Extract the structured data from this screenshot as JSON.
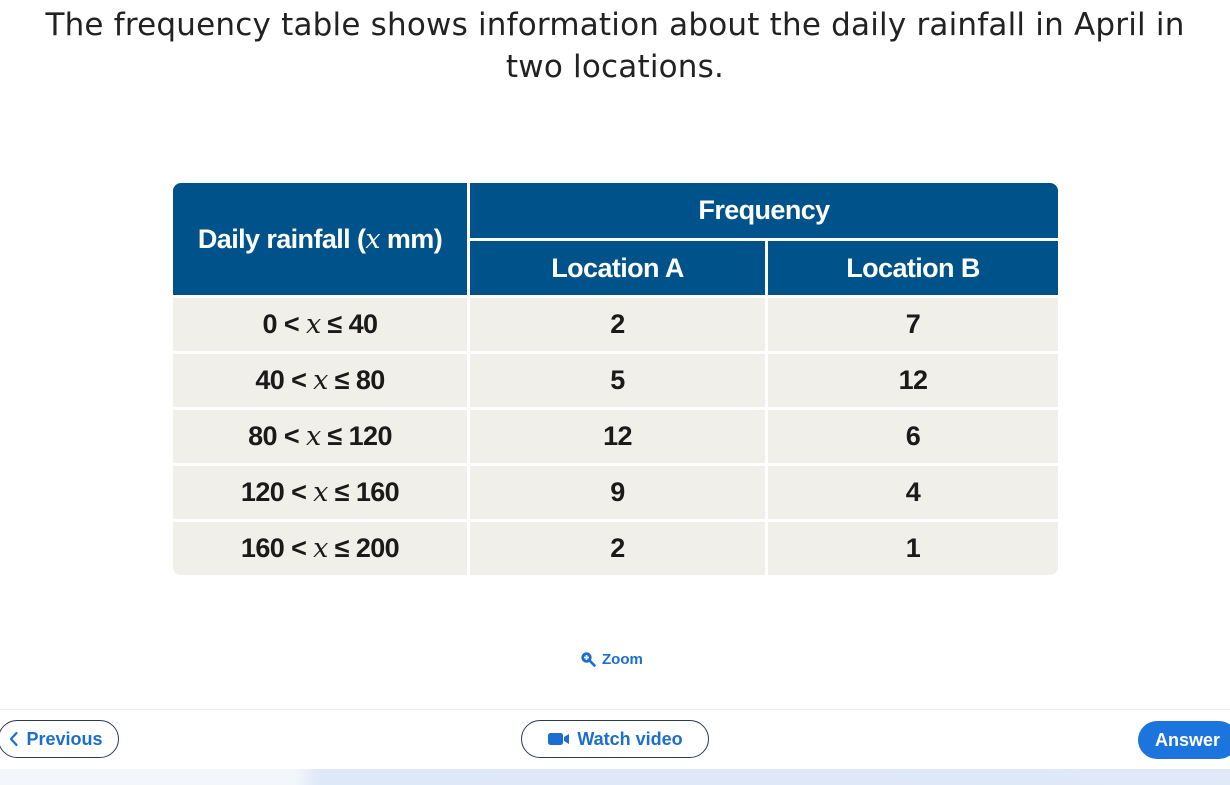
{
  "question": {
    "prompt": "The frequency table shows information about the daily rainfall in April in two locations."
  },
  "table": {
    "header_rainfall_pre": "Daily rainfall (",
    "header_rainfall_var": "x",
    "header_rainfall_post": " mm)",
    "header_frequency": "Frequency",
    "header_location_a": "Location A",
    "header_location_b": "Location B",
    "rows": [
      {
        "lower": "0",
        "upper": "40",
        "a": "2",
        "b": "7"
      },
      {
        "lower": "40",
        "upper": "80",
        "a": "5",
        "b": "12"
      },
      {
        "lower": "80",
        "upper": "120",
        "a": "12",
        "b": "6"
      },
      {
        "lower": "120",
        "upper": "160",
        "a": "9",
        "b": "4"
      },
      {
        "lower": "160",
        "upper": "200",
        "a": "2",
        "b": "1"
      }
    ],
    "lt_symbol": "<",
    "le_symbol": "≤",
    "var": "x"
  },
  "zoom": {
    "label": "Zoom",
    "icon": "zoom-in-icon"
  },
  "nav": {
    "previous_label": "Previous",
    "previous_icon": "chevron-left-icon",
    "video_label": "Watch video",
    "video_icon": "video-camera-icon",
    "answer_label": "Answer"
  },
  "colors": {
    "header_blue": "#00528a",
    "row_beige": "#f1efea",
    "link_blue": "#1c6dd0",
    "answer_blue": "#1c75dc"
  }
}
